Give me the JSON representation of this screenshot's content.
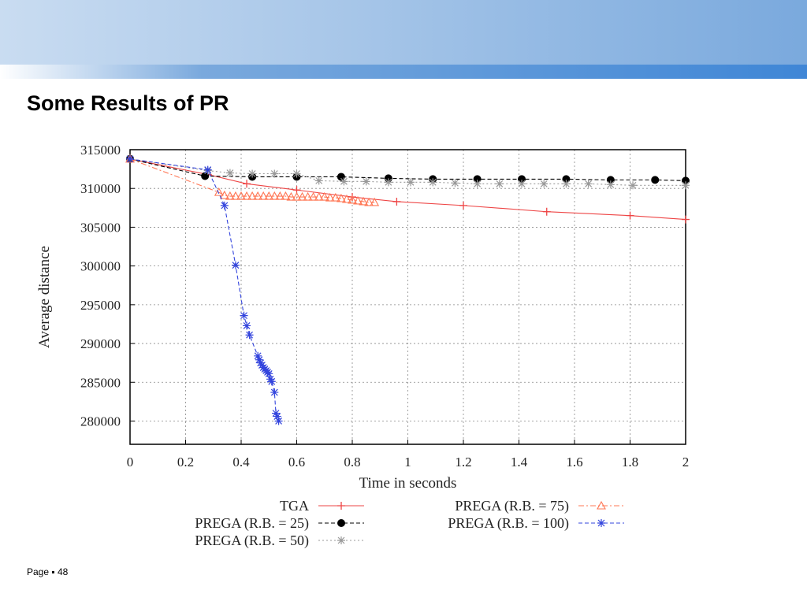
{
  "slide": {
    "title": "Some Results of PR",
    "footer": {
      "page_label": "Page",
      "separator": "▪",
      "page_number": "48"
    },
    "banner_colors": [
      "#c9dcf1",
      "#7aa9dd",
      "#3f86d6"
    ]
  },
  "chart_data": {
    "type": "line",
    "xlabel": "Time in seconds",
    "ylabel": "Average distance",
    "xlim": [
      0,
      2
    ],
    "ylim": [
      277000,
      315000
    ],
    "xticks": [
      "0",
      "0.2",
      "0.4",
      "0.6",
      "0.8",
      "1",
      "1.2",
      "1.4",
      "1.6",
      "1.8",
      "2"
    ],
    "yticks": [
      "315000",
      "310000",
      "305000",
      "300000",
      "295000",
      "290000",
      "285000",
      "280000"
    ],
    "grid": true,
    "legend_position": "bottom",
    "series": [
      {
        "name": "TGA",
        "color": "#ee4444",
        "marker": "plus",
        "line": "solid",
        "x": [
          0,
          0.28,
          0.42,
          0.6,
          0.8,
          0.96,
          1.2,
          1.5,
          1.8,
          2.0
        ],
        "y": [
          313800,
          311800,
          310600,
          309800,
          308900,
          308300,
          307800,
          307000,
          306500,
          306000
        ]
      },
      {
        "name": "PREGA (R.B. = 25)",
        "color": "#000000",
        "marker": "circle",
        "line": "dashed",
        "x": [
          0,
          0.27,
          0.44,
          0.6,
          0.76,
          0.93,
          1.09,
          1.25,
          1.41,
          1.57,
          1.73,
          1.89,
          2.0
        ],
        "y": [
          313800,
          311600,
          311500,
          311500,
          311500,
          311300,
          311200,
          311200,
          311200,
          311200,
          311100,
          311100,
          311000
        ]
      },
      {
        "name": "PREGA (R.B. = 50)",
        "color": "#999999",
        "marker": "asterisk",
        "line": "dotted",
        "x": [
          0,
          0.28,
          0.36,
          0.44,
          0.52,
          0.6,
          0.68,
          0.77,
          0.85,
          0.93,
          1.01,
          1.09,
          1.17,
          1.25,
          1.33,
          1.41,
          1.49,
          1.57,
          1.65,
          1.73,
          1.81,
          2.0
        ],
        "y": [
          313800,
          312300,
          312000,
          311900,
          311900,
          311900,
          311000,
          310900,
          310900,
          310800,
          310800,
          310800,
          310700,
          310600,
          310600,
          310600,
          310600,
          310600,
          310600,
          310500,
          310400,
          310400
        ]
      },
      {
        "name": "PREGA (R.B. =   75)",
        "color": "#ff7755",
        "marker": "triangle",
        "line": "dashdot",
        "x": [
          0,
          0.32,
          0.34,
          0.36,
          0.38,
          0.4,
          0.42,
          0.44,
          0.46,
          0.48,
          0.5,
          0.52,
          0.54,
          0.56,
          0.58,
          0.6,
          0.62,
          0.64,
          0.66,
          0.68,
          0.7,
          0.72,
          0.74,
          0.76,
          0.78,
          0.8,
          0.82,
          0.84,
          0.86,
          0.88
        ],
        "y": [
          313800,
          309500,
          309100,
          309000,
          309000,
          309000,
          309000,
          309000,
          309000,
          309000,
          309000,
          309000,
          309000,
          309000,
          308900,
          308900,
          308900,
          308900,
          308900,
          308900,
          308900,
          308800,
          308800,
          308700,
          308600,
          308500,
          308400,
          308300,
          308200,
          308200
        ]
      },
      {
        "name": "PREGA (R.B. = 100)",
        "color": "#3344dd",
        "marker": "asterisk",
        "line": "dashed",
        "x": [
          0,
          0.28,
          0.34,
          0.38,
          0.41,
          0.42,
          0.43,
          0.46,
          0.465,
          0.47,
          0.475,
          0.48,
          0.485,
          0.49,
          0.495,
          0.5,
          0.505,
          0.51,
          0.52,
          0.525,
          0.53,
          0.535
        ],
        "y": [
          313800,
          312400,
          307800,
          300100,
          293600,
          292300,
          291100,
          288400,
          287900,
          287500,
          287200,
          286900,
          286700,
          286500,
          286300,
          286100,
          285400,
          285100,
          283700,
          281000,
          280600,
          280000
        ]
      }
    ]
  }
}
